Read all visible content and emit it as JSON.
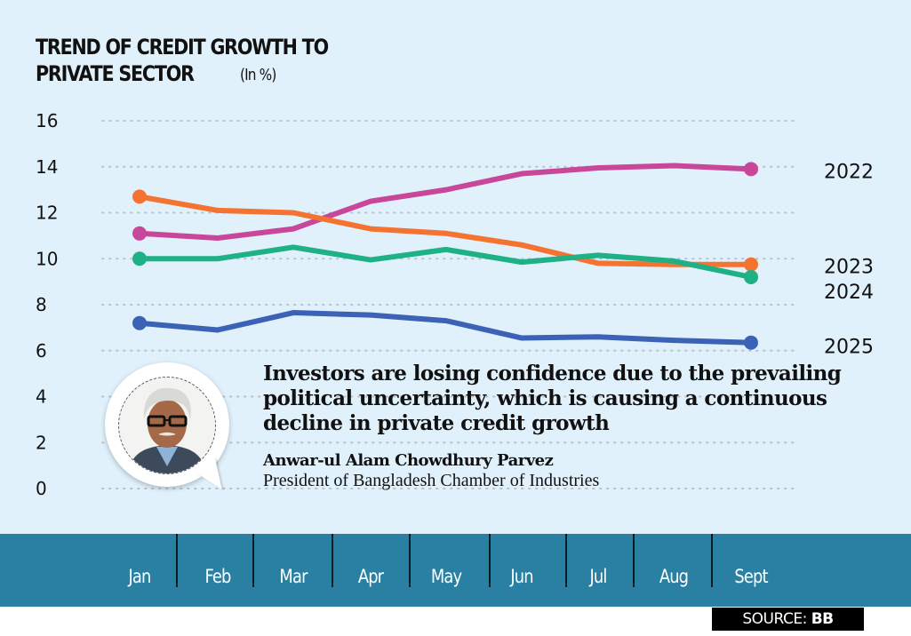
{
  "header": {
    "title_line1": "TREND OF CREDIT GROWTH TO",
    "title_line2": "PRIVATE SECTOR",
    "unit": "(In %)"
  },
  "quote": {
    "text": "Investors are losing confidence due to the prevailing political uncertainty, which is causing a continuous decline in private credit growth",
    "author": "Anwar-ul Alam Chowdhury Parvez",
    "role": "President of Bangladesh Chamber of Industries"
  },
  "source": {
    "label": "SOURCE:",
    "value": "BB"
  },
  "chart_data": {
    "type": "line",
    "title": "TREND OF CREDIT GROWTH TO PRIVATE SECTOR (In %)",
    "xlabel": "",
    "ylabel": "",
    "categories": [
      "Jan",
      "Feb",
      "Mar",
      "Apr",
      "May",
      "Jun",
      "Jul",
      "Aug",
      "Sept"
    ],
    "yticks": [
      0,
      2,
      4,
      6,
      8,
      10,
      12,
      14,
      16
    ],
    "ylim": [
      0,
      16
    ],
    "grid": "horizontal-dotted",
    "legend": "right (end-of-line labels)",
    "series": [
      {
        "name": "2022",
        "color": "#c8479b",
        "values": [
          11.1,
          10.9,
          11.3,
          12.5,
          13.0,
          13.7,
          13.95,
          14.05,
          13.9
        ]
      },
      {
        "name": "2023",
        "color": "#f57330",
        "values": [
          12.7,
          12.1,
          12.0,
          11.3,
          11.1,
          10.6,
          9.8,
          9.75,
          9.75
        ]
      },
      {
        "name": "2024",
        "color": "#1db185",
        "values": [
          10.0,
          10.0,
          10.5,
          9.95,
          10.4,
          9.85,
          10.15,
          9.9,
          9.2
        ]
      },
      {
        "name": "2025",
        "color": "#3b62b5",
        "values": [
          7.2,
          6.9,
          7.65,
          7.55,
          7.3,
          6.55,
          6.6,
          6.45,
          6.35
        ]
      }
    ]
  }
}
